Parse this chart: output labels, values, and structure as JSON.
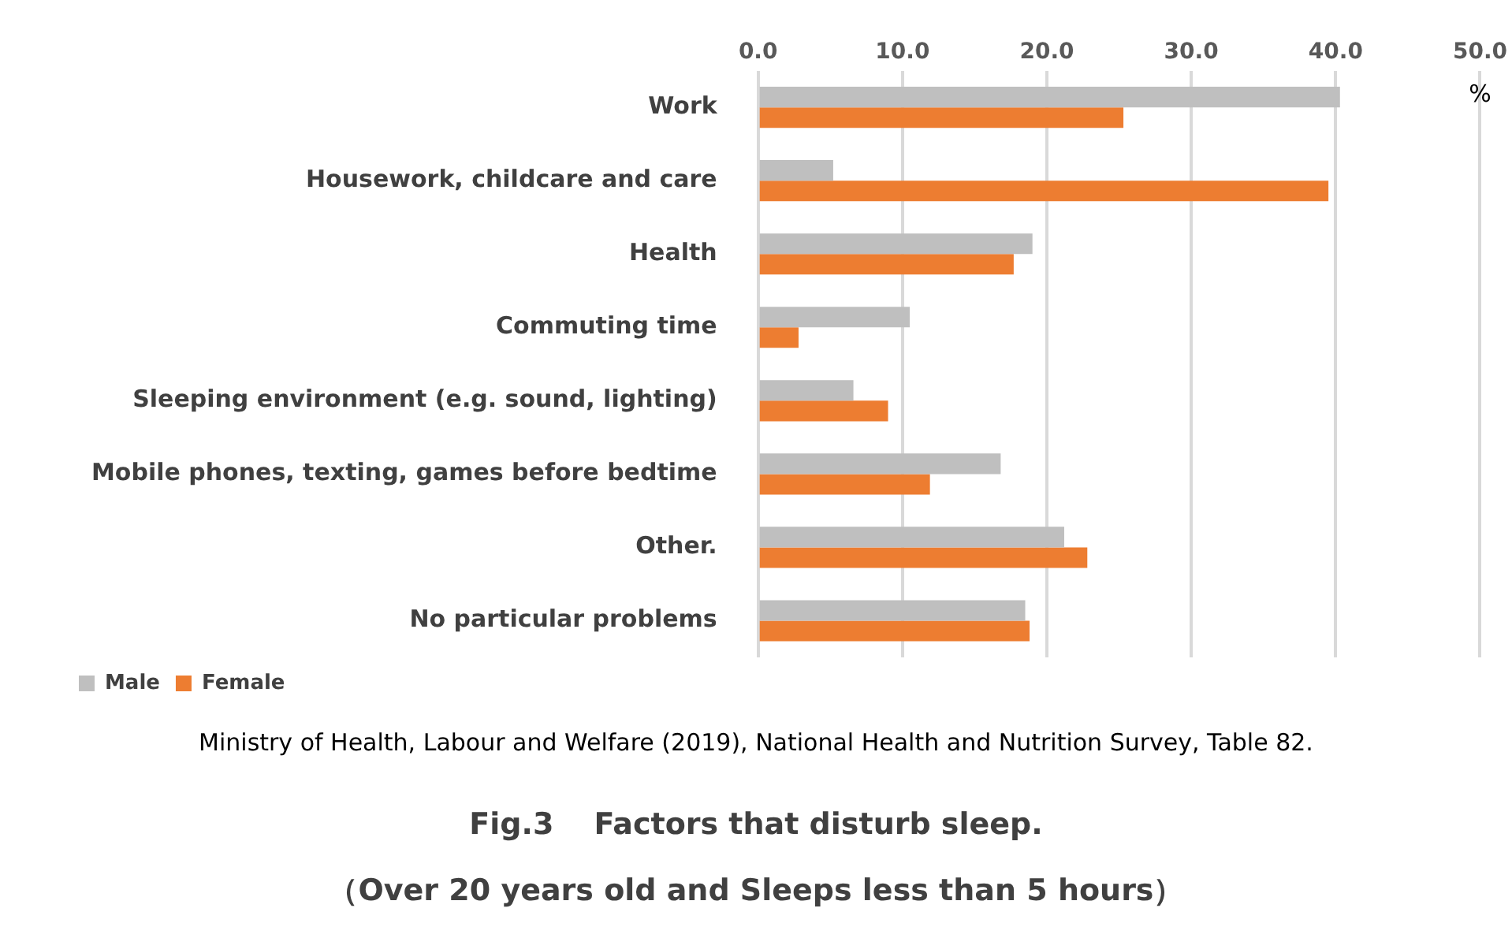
{
  "chart_data": {
    "type": "bar",
    "orientation": "horizontal",
    "title": "Fig.3　 Factors that disturb sleep.",
    "subtitle": "（Over 20 years old and Sleeps less than 5 hours）",
    "xlabel": "%",
    "categories": [
      "Work",
      "Housework, childcare and care",
      "Health",
      "Commuting time",
      "Sleeping environment (e.g. sound, lighting)",
      "Mobile phones, texting, games before bedtime",
      "Other.",
      "No particular problems"
    ],
    "series": [
      {
        "name": "Male",
        "color": "#bfbfbf",
        "values": [
          40.3,
          5.2,
          19.0,
          10.5,
          6.6,
          16.8,
          21.2,
          18.5
        ]
      },
      {
        "name": "Female",
        "color": "#ed7d31",
        "values": [
          25.3,
          39.5,
          17.7,
          2.8,
          9.0,
          11.9,
          22.8,
          18.8
        ]
      }
    ],
    "xlim": [
      0,
      50
    ],
    "xticks": [
      {
        "value": 0,
        "label": "0.0"
      },
      {
        "value": 10,
        "label": "10.0"
      },
      {
        "value": 20,
        "label": "20.0"
      },
      {
        "value": 30,
        "label": "30.0"
      },
      {
        "value": 40,
        "label": "40.0"
      },
      {
        "value": 50,
        "label": "50.0"
      }
    ],
    "grid": "x",
    "legend": "bottom left",
    "annotations": [
      "Ministry of Health, Labour and Welfare (2019), National Health and Nutrition Survey, Table 82."
    ]
  }
}
